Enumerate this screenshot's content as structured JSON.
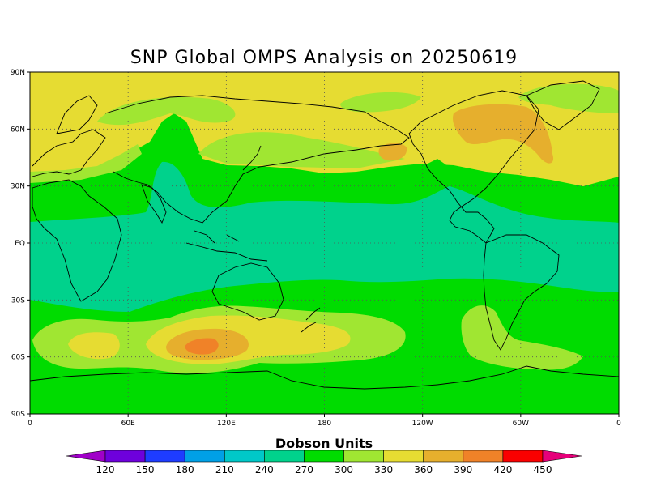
{
  "title": "SNP Global OMPS Analysis on 20250619",
  "lat_ticks": [
    "90N",
    "60N",
    "30N",
    "EQ",
    "30S",
    "60S",
    "90S"
  ],
  "lon_ticks": [
    "0",
    "60E",
    "120E",
    "180",
    "120W",
    "60W",
    "0"
  ],
  "colorbar": {
    "title": "Dobson Units",
    "levels": [
      "120",
      "150",
      "180",
      "210",
      "240",
      "270",
      "300",
      "330",
      "360",
      "390",
      "420",
      "450"
    ],
    "colors": [
      "#a000c8",
      "#6e00dc",
      "#1e3cff",
      "#00a0e6",
      "#00c8c8",
      "#00d28c",
      "#00dc00",
      "#a0e632",
      "#e6dc32",
      "#e6af2d",
      "#f08228",
      "#fa0000",
      "#e6007a"
    ]
  },
  "map_colors": {
    "c300": "#00dc00",
    "c270": "#00d28c",
    "c330": "#a0e632",
    "c360": "#e6dc32",
    "c390": "#e6af2d",
    "c420": "#f08228",
    "coast": "#000000",
    "grid": "#555555"
  }
}
